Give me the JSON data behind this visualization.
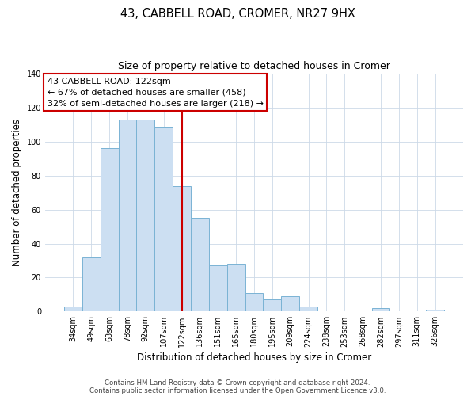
{
  "title": "43, CABBELL ROAD, CROMER, NR27 9HX",
  "subtitle": "Size of property relative to detached houses in Cromer",
  "xlabel": "Distribution of detached houses by size in Cromer",
  "ylabel": "Number of detached properties",
  "bar_labels": [
    "34sqm",
    "49sqm",
    "63sqm",
    "78sqm",
    "92sqm",
    "107sqm",
    "122sqm",
    "136sqm",
    "151sqm",
    "165sqm",
    "180sqm",
    "195sqm",
    "209sqm",
    "224sqm",
    "238sqm",
    "253sqm",
    "268sqm",
    "282sqm",
    "297sqm",
    "311sqm",
    "326sqm"
  ],
  "bar_values": [
    3,
    32,
    96,
    113,
    113,
    109,
    74,
    55,
    27,
    28,
    11,
    7,
    9,
    3,
    0,
    0,
    0,
    2,
    0,
    0,
    1
  ],
  "bar_color": "#ccdff2",
  "bar_edge_color": "#7ab3d4",
  "vline_index": 6,
  "vline_color": "#cc0000",
  "annotation_text": "43 CABBELL ROAD: 122sqm\n← 67% of detached houses are smaller (458)\n32% of semi-detached houses are larger (218) →",
  "annotation_box_color": "#ffffff",
  "annotation_box_edge_color": "#cc0000",
  "ylim": [
    0,
    140
  ],
  "yticks": [
    0,
    20,
    40,
    60,
    80,
    100,
    120,
    140
  ],
  "footer1": "Contains HM Land Registry data © Crown copyright and database right 2024.",
  "footer2": "Contains public sector information licensed under the Open Government Licence v3.0.",
  "background_color": "#ffffff",
  "grid_color": "#ccd9e8",
  "title_fontsize": 10.5,
  "subtitle_fontsize": 9,
  "tick_fontsize": 7,
  "axis_label_fontsize": 8.5,
  "footer_fontsize": 6.2,
  "annotation_fontsize": 8
}
